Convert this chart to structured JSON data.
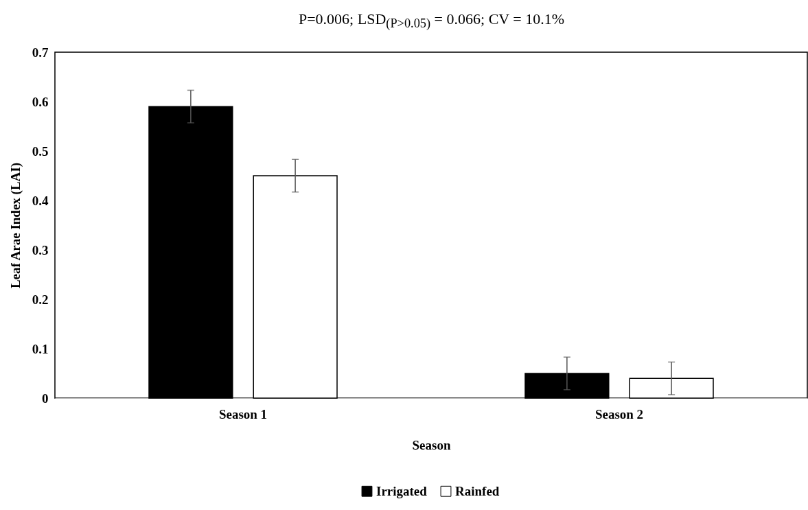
{
  "chart_data": {
    "type": "bar",
    "title": "P=0.006; LSD$_{(P>0.05)}$ = 0.066; CV = 10.1%",
    "xlabel": "Season",
    "ylabel": "Leaf Arae Index (LAI)",
    "categories": [
      "Season 1",
      "Season 2"
    ],
    "series": [
      {
        "name": "Irrigated",
        "color": "#000000",
        "values": [
          0.59,
          0.05
        ],
        "errors": [
          0.033,
          0.033
        ]
      },
      {
        "name": "Rainfed",
        "color": "#ffffff",
        "values": [
          0.45,
          0.04
        ],
        "errors": [
          0.033,
          0.033
        ]
      }
    ],
    "ylim": [
      0,
      0.7
    ],
    "yticks": [
      0,
      0.1,
      0.2,
      0.3,
      0.4,
      0.5,
      0.6,
      0.7
    ],
    "grid": false,
    "legend": "bottom"
  }
}
